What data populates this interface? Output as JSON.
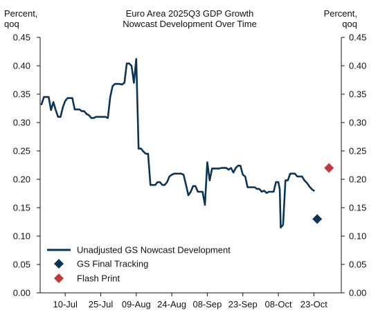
{
  "chart_data": {
    "type": "line",
    "title_lines": [
      "Euro Area 2025Q3 GDP Growth",
      "Nowcast Development Over Time"
    ],
    "left_axis_label": [
      "Percent,",
      "qoq"
    ],
    "right_axis_label": [
      "Percent,",
      "qoq"
    ],
    "ylim": [
      0,
      0.45
    ],
    "y_ticks": [
      "0.00",
      "0.05",
      "0.10",
      "0.15",
      "0.20",
      "0.25",
      "0.30",
      "0.35",
      "0.40",
      "0.45"
    ],
    "x_ticks": [
      {
        "label": "10-Jul",
        "day": 10
      },
      {
        "label": "25-Jul",
        "day": 25
      },
      {
        "label": "09-Aug",
        "day": 40
      },
      {
        "label": "24-Aug",
        "day": 55
      },
      {
        "label": "08-Sep",
        "day": 70
      },
      {
        "label": "23-Sep",
        "day": 85
      },
      {
        "label": "08-Oct",
        "day": 100
      },
      {
        "label": "23-Oct",
        "day": 115
      }
    ],
    "x_range_days": [
      0,
      126
    ],
    "grid": false,
    "legend_position": "bottom-left",
    "series": [
      {
        "name": "Unadjusted GS Nowcast Development",
        "kind": "line",
        "color": "#0b3356",
        "points": [
          [
            0,
            0.332
          ],
          [
            1,
            0.345
          ],
          [
            2,
            0.345
          ],
          [
            3,
            0.345
          ],
          [
            4,
            0.322
          ],
          [
            5,
            0.336
          ],
          [
            6,
            0.322
          ],
          [
            7,
            0.31
          ],
          [
            8,
            0.31
          ],
          [
            9,
            0.327
          ],
          [
            10,
            0.338
          ],
          [
            11,
            0.343
          ],
          [
            12,
            0.343
          ],
          [
            13,
            0.343
          ],
          [
            14,
            0.323
          ],
          [
            15,
            0.323
          ],
          [
            16,
            0.323
          ],
          [
            17,
            0.32
          ],
          [
            18,
            0.32
          ],
          [
            19,
            0.315
          ],
          [
            20,
            0.313
          ],
          [
            21,
            0.308
          ],
          [
            22,
            0.308
          ],
          [
            23,
            0.31
          ],
          [
            24,
            0.31
          ],
          [
            25,
            0.31
          ],
          [
            26,
            0.31
          ],
          [
            27,
            0.31
          ],
          [
            28,
            0.308
          ],
          [
            29,
            0.345
          ],
          [
            30,
            0.364
          ],
          [
            31,
            0.368
          ],
          [
            32,
            0.368
          ],
          [
            33,
            0.368
          ],
          [
            34,
            0.367
          ],
          [
            35,
            0.37
          ],
          [
            36,
            0.404
          ],
          [
            37,
            0.404
          ],
          [
            38,
            0.4
          ],
          [
            39,
            0.37
          ],
          [
            40,
            0.412
          ],
          [
            41,
            0.254
          ],
          [
            42,
            0.254
          ],
          [
            43,
            0.249
          ],
          [
            44,
            0.245
          ],
          [
            45,
            0.245
          ],
          [
            46,
            0.19
          ],
          [
            47,
            0.19
          ],
          [
            48,
            0.19
          ],
          [
            49,
            0.195
          ],
          [
            50,
            0.195
          ],
          [
            51,
            0.19
          ],
          [
            52,
            0.19
          ],
          [
            53,
            0.195
          ],
          [
            54,
            0.205
          ],
          [
            55,
            0.208
          ],
          [
            56,
            0.21
          ],
          [
            57,
            0.21
          ],
          [
            58,
            0.21
          ],
          [
            59,
            0.21
          ],
          [
            60,
            0.208
          ],
          [
            61,
            0.19
          ],
          [
            62,
            0.172
          ],
          [
            63,
            0.178
          ],
          [
            64,
            0.188
          ],
          [
            65,
            0.188
          ],
          [
            66,
            0.178
          ],
          [
            67,
            0.178
          ],
          [
            68,
            0.178
          ],
          [
            69,
            0.155
          ],
          [
            70,
            0.23
          ],
          [
            71,
            0.198
          ],
          [
            72,
            0.219
          ],
          [
            73,
            0.219
          ],
          [
            74,
            0.219
          ],
          [
            75,
            0.219
          ],
          [
            76,
            0.22
          ],
          [
            77,
            0.22
          ],
          [
            78,
            0.22
          ],
          [
            79,
            0.217
          ],
          [
            80,
            0.22
          ],
          [
            81,
            0.212
          ],
          [
            82,
            0.22
          ],
          [
            83,
            0.224
          ],
          [
            84,
            0.224
          ],
          [
            85,
            0.208
          ],
          [
            86,
            0.205
          ],
          [
            87,
            0.186
          ],
          [
            88,
            0.186
          ],
          [
            89,
            0.186
          ],
          [
            90,
            0.186
          ],
          [
            91,
            0.183
          ],
          [
            92,
            0.183
          ],
          [
            93,
            0.178
          ],
          [
            94,
            0.18
          ],
          [
            95,
            0.176
          ],
          [
            96,
            0.178
          ],
          [
            97,
            0.178
          ],
          [
            98,
            0.178
          ],
          [
            99,
            0.195
          ],
          [
            100,
            0.195
          ],
          [
            100.6,
            0.182
          ],
          [
            101,
            0.115
          ],
          [
            102,
            0.12
          ],
          [
            103,
            0.198
          ],
          [
            104,
            0.198
          ],
          [
            105,
            0.21
          ],
          [
            106,
            0.21
          ],
          [
            107,
            0.21
          ],
          [
            108,
            0.205
          ],
          [
            109,
            0.205
          ],
          [
            110,
            0.205
          ],
          [
            111,
            0.198
          ],
          [
            112,
            0.194
          ],
          [
            113,
            0.188
          ],
          [
            114,
            0.183
          ],
          [
            115,
            0.18
          ]
        ]
      },
      {
        "name": "GS Final Tracking",
        "kind": "diamond",
        "color": "#0b3356",
        "points": [
          [
            116.4,
            0.13
          ]
        ]
      },
      {
        "name": "Flash Print",
        "kind": "diamond",
        "color": "#c0393b",
        "points": [
          [
            121.4,
            0.22
          ]
        ]
      }
    ]
  }
}
